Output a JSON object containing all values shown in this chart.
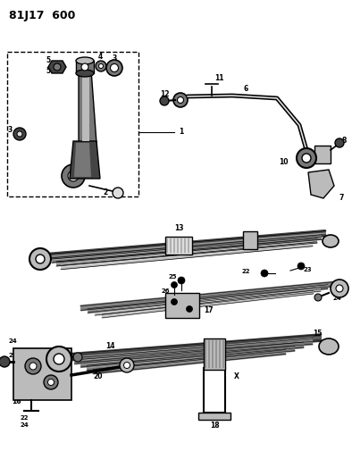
{
  "title": "81J17  600",
  "background_color": "#ffffff",
  "line_color": "#000000",
  "figsize": [
    3.94,
    5.33
  ],
  "dpi": 100,
  "gray_dark": "#444444",
  "gray_mid": "#777777",
  "gray_light": "#bbbbbb",
  "gray_lighter": "#dddddd"
}
